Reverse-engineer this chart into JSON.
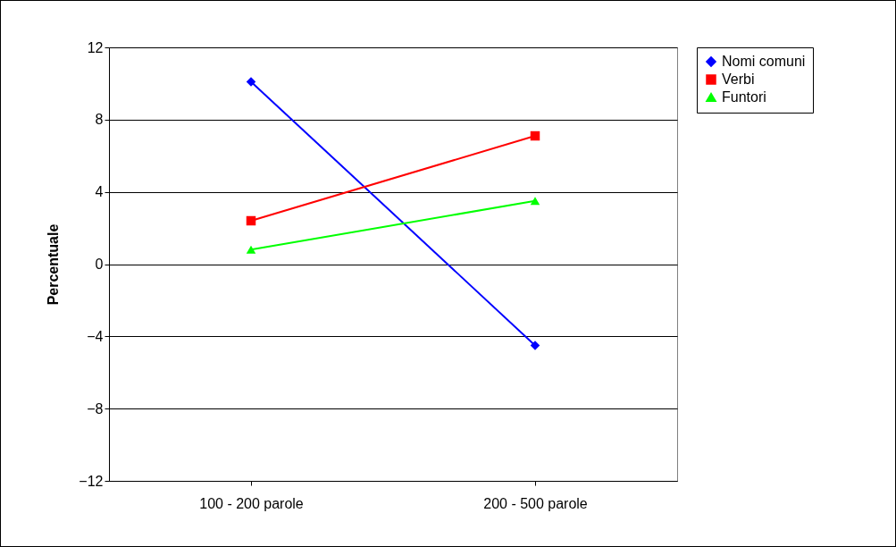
{
  "chart_data": {
    "type": "line",
    "ylabel": "Percentuale",
    "categories": [
      "100 - 200 parole",
      "200 - 500 parole"
    ],
    "series": [
      {
        "name": "Nomi comuni",
        "color": "#0000ff",
        "marker": "diamond",
        "values": [
          10.1,
          -4.5
        ]
      },
      {
        "name": "Verbi",
        "color": "#ff0000",
        "marker": "square",
        "values": [
          2.4,
          7.1
        ]
      },
      {
        "name": "Funtori",
        "color": "#00ff00",
        "marker": "triangle",
        "values": [
          0.8,
          3.5
        ]
      }
    ],
    "ylim": [
      -12,
      12
    ],
    "yticks": [
      -12,
      -8,
      -4,
      0,
      4,
      8,
      12
    ],
    "grid": "y",
    "legend": "right"
  }
}
